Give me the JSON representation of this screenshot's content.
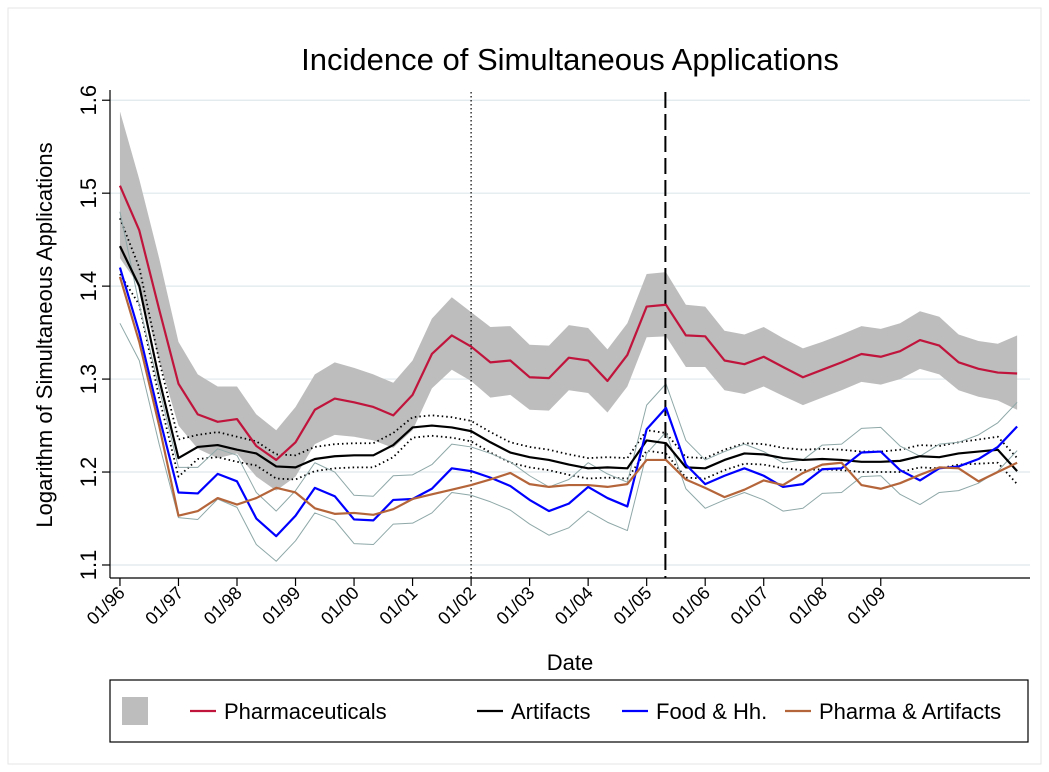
{
  "chart_data": {
    "type": "line",
    "title": "Incidence of Simultaneous Applications",
    "x_label": "Date",
    "y_label": "Logarithm of Simultaneous Applications",
    "xlim": [
      1995.83,
      2011.55
    ],
    "ylim": [
      1.086,
      1.611
    ],
    "xticks": [
      {
        "value": 1996,
        "label": "01/96"
      },
      {
        "value": 1997,
        "label": "01/97"
      },
      {
        "value": 1998,
        "label": "01/98"
      },
      {
        "value": 1999,
        "label": "01/99"
      },
      {
        "value": 2000,
        "label": "01/00"
      },
      {
        "value": 2001,
        "label": "01/01"
      },
      {
        "value": 2002,
        "label": "01/02"
      },
      {
        "value": 2003,
        "label": "01/03"
      },
      {
        "value": 2004,
        "label": "01/04"
      },
      {
        "value": 2005,
        "label": "01/05"
      },
      {
        "value": 2006,
        "label": "01/06"
      },
      {
        "value": 2007,
        "label": "01/07"
      },
      {
        "value": 2008,
        "label": "01/08"
      },
      {
        "value": 2009,
        "label": "01/09"
      }
    ],
    "yticks": [
      1.1,
      1.2,
      1.3,
      1.4,
      1.5,
      1.6
    ],
    "grid": true,
    "legend": "bottom",
    "vlines": [
      {
        "x": 2002.0,
        "style": "dotted"
      },
      {
        "x": 2005.32,
        "style": "dashed"
      }
    ],
    "x": [
      1996,
      1996.33,
      1996.67,
      1997,
      1997.33,
      1997.67,
      1998,
      1998.33,
      1998.67,
      1999,
      1999.33,
      1999.67,
      2000,
      2000.33,
      2000.67,
      2001,
      2001.33,
      2001.67,
      2002,
      2002.33,
      2002.67,
      2003,
      2003.33,
      2003.67,
      2004,
      2004.33,
      2004.67,
      2005,
      2005.33,
      2005.67,
      2006,
      2006.33,
      2006.67,
      2007,
      2007.33,
      2007.67,
      2008,
      2008.33,
      2008.67,
      2009,
      2009.33,
      2009.67,
      2010,
      2010.33,
      2010.67,
      2011,
      2011.33
    ],
    "band": {
      "color": "#bdbdbd",
      "upper": [
        1.588,
        1.515,
        1.43,
        1.34,
        1.305,
        1.292,
        1.292,
        1.262,
        1.245,
        1.27,
        1.305,
        1.318,
        1.312,
        1.305,
        1.296,
        1.32,
        1.365,
        1.388,
        1.372,
        1.356,
        1.357,
        1.337,
        1.336,
        1.358,
        1.355,
        1.332,
        1.36,
        1.413,
        1.415,
        1.38,
        1.378,
        1.352,
        1.348,
        1.356,
        1.344,
        1.333,
        1.34,
        1.348,
        1.357,
        1.354,
        1.36,
        1.373,
        1.367,
        1.348,
        1.341,
        1.338,
        1.347
      ],
      "lower": [
        1.43,
        1.4,
        1.32,
        1.25,
        1.225,
        1.215,
        1.22,
        1.195,
        1.18,
        1.195,
        1.23,
        1.24,
        1.238,
        1.234,
        1.226,
        1.245,
        1.29,
        1.31,
        1.298,
        1.28,
        1.283,
        1.267,
        1.266,
        1.288,
        1.285,
        1.264,
        1.292,
        1.345,
        1.346,
        1.313,
        1.313,
        1.288,
        1.284,
        1.292,
        1.282,
        1.272,
        1.28,
        1.288,
        1.297,
        1.294,
        1.3,
        1.311,
        1.305,
        1.288,
        1.281,
        1.277,
        1.267
      ]
    },
    "ci_lines": [
      {
        "color": "#000000",
        "style": "dotted",
        "upper": [
          1.473,
          1.42,
          1.32,
          1.235,
          1.24,
          1.243,
          1.238,
          1.233,
          1.219,
          1.218,
          1.227,
          1.23,
          1.231,
          1.231,
          1.242,
          1.259,
          1.261,
          1.259,
          1.255,
          1.243,
          1.232,
          1.227,
          1.224,
          1.219,
          1.215,
          1.216,
          1.215,
          1.245,
          1.242,
          1.216,
          1.215,
          1.224,
          1.231,
          1.23,
          1.226,
          1.224,
          1.225,
          1.224,
          1.222,
          1.222,
          1.224,
          1.229,
          1.228,
          1.232,
          1.235,
          1.238,
          1.215
        ],
        "lower": [
          1.413,
          1.38,
          1.28,
          1.195,
          1.214,
          1.216,
          1.211,
          1.207,
          1.193,
          1.192,
          1.201,
          1.204,
          1.205,
          1.205,
          1.216,
          1.237,
          1.239,
          1.237,
          1.233,
          1.221,
          1.21,
          1.205,
          1.202,
          1.197,
          1.193,
          1.194,
          1.193,
          1.223,
          1.22,
          1.194,
          1.193,
          1.202,
          1.209,
          1.208,
          1.204,
          1.202,
          1.203,
          1.202,
          1.2,
          1.2,
          1.2,
          1.205,
          1.204,
          1.208,
          1.209,
          1.21,
          1.187
        ]
      },
      {
        "color": "#8fa8a8",
        "style": "solid",
        "upper": [
          1.48,
          1.38,
          1.29,
          1.205,
          1.205,
          1.225,
          1.218,
          1.178,
          1.158,
          1.18,
          1.21,
          1.2,
          1.175,
          1.174,
          1.196,
          1.197,
          1.208,
          1.23,
          1.227,
          1.22,
          1.211,
          1.196,
          1.184,
          1.192,
          1.21,
          1.198,
          1.189,
          1.272,
          1.295,
          1.234,
          1.213,
          1.222,
          1.23,
          1.222,
          1.21,
          1.213,
          1.229,
          1.23,
          1.247,
          1.248,
          1.228,
          1.217,
          1.23,
          1.232,
          1.24,
          1.253,
          1.275
        ],
        "lower": [
          1.36,
          1.32,
          1.23,
          1.151,
          1.149,
          1.171,
          1.162,
          1.122,
          1.104,
          1.126,
          1.156,
          1.148,
          1.123,
          1.122,
          1.144,
          1.145,
          1.156,
          1.178,
          1.175,
          1.168,
          1.159,
          1.144,
          1.132,
          1.14,
          1.158,
          1.146,
          1.137,
          1.22,
          1.243,
          1.182,
          1.161,
          1.17,
          1.178,
          1.17,
          1.158,
          1.161,
          1.177,
          1.178,
          1.195,
          1.196,
          1.176,
          1.165,
          1.178,
          1.18,
          1.188,
          1.201,
          1.223
        ]
      }
    ],
    "series": [
      {
        "name": "Pharmaceuticals",
        "color": "#c0143c",
        "values": [
          1.508,
          1.46,
          1.375,
          1.295,
          1.262,
          1.254,
          1.257,
          1.228,
          1.213,
          1.232,
          1.267,
          1.279,
          1.275,
          1.27,
          1.261,
          1.283,
          1.327,
          1.347,
          1.335,
          1.318,
          1.32,
          1.302,
          1.301,
          1.323,
          1.32,
          1.298,
          1.326,
          1.378,
          1.38,
          1.347,
          1.346,
          1.32,
          1.316,
          1.324,
          1.313,
          1.302,
          1.31,
          1.318,
          1.327,
          1.324,
          1.33,
          1.342,
          1.336,
          1.318,
          1.311,
          1.307,
          1.306
        ]
      },
      {
        "name": "Artifacts",
        "color": "#000000",
        "values": [
          1.443,
          1.4,
          1.3,
          1.215,
          1.227,
          1.229,
          1.224,
          1.22,
          1.206,
          1.205,
          1.214,
          1.217,
          1.218,
          1.218,
          1.229,
          1.248,
          1.25,
          1.248,
          1.244,
          1.232,
          1.221,
          1.216,
          1.213,
          1.208,
          1.204,
          1.205,
          1.204,
          1.234,
          1.231,
          1.205,
          1.204,
          1.213,
          1.22,
          1.219,
          1.215,
          1.213,
          1.214,
          1.213,
          1.211,
          1.211,
          1.212,
          1.217,
          1.216,
          1.22,
          1.222,
          1.224,
          1.201
        ]
      },
      {
        "name": "Food & Hh.",
        "color": "#0000ff",
        "values": [
          1.42,
          1.35,
          1.26,
          1.178,
          1.177,
          1.198,
          1.19,
          1.15,
          1.131,
          1.153,
          1.183,
          1.174,
          1.149,
          1.148,
          1.17,
          1.171,
          1.182,
          1.204,
          1.201,
          1.194,
          1.185,
          1.17,
          1.158,
          1.166,
          1.184,
          1.172,
          1.163,
          1.246,
          1.269,
          1.208,
          1.187,
          1.196,
          1.204,
          1.196,
          1.184,
          1.187,
          1.203,
          1.204,
          1.221,
          1.222,
          1.202,
          1.191,
          1.204,
          1.206,
          1.214,
          1.227,
          1.249
        ]
      },
      {
        "name": "Pharma & Artifacts",
        "color": "#b5653a",
        "values": [
          1.41,
          1.34,
          1.25,
          1.153,
          1.158,
          1.172,
          1.165,
          1.172,
          1.183,
          1.178,
          1.161,
          1.155,
          1.156,
          1.154,
          1.16,
          1.171,
          1.176,
          1.181,
          1.186,
          1.192,
          1.199,
          1.187,
          1.184,
          1.186,
          1.186,
          1.184,
          1.187,
          1.213,
          1.213,
          1.192,
          1.183,
          1.173,
          1.181,
          1.191,
          1.186,
          1.199,
          1.208,
          1.21,
          1.186,
          1.182,
          1.188,
          1.197,
          1.205,
          1.204,
          1.19,
          1.2,
          1.21
        ]
      }
    ]
  }
}
